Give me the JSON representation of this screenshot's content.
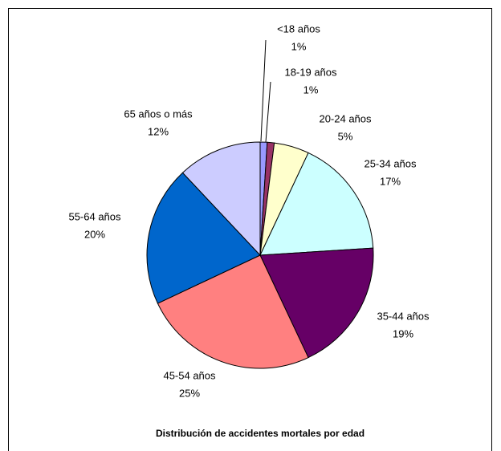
{
  "chart_data": {
    "type": "pie",
    "title": "Distribución de accidentes mortales por edad",
    "categories": [
      "<18 años",
      "18-19 años",
      "20-24 años",
      "25-34 años",
      "35-44 años",
      "45-54 años",
      "55-64 años",
      "65 años o más"
    ],
    "values": [
      1,
      1,
      5,
      17,
      19,
      25,
      20,
      12
    ],
    "value_labels": [
      "1%",
      "1%",
      "5%",
      "17%",
      "19%",
      "25%",
      "20%",
      "12%"
    ],
    "colors": [
      "#9999ff",
      "#993366",
      "#ffffcc",
      "#ccffff",
      "#660066",
      "#ff8080",
      "#0066cc",
      "#ccccff"
    ]
  }
}
